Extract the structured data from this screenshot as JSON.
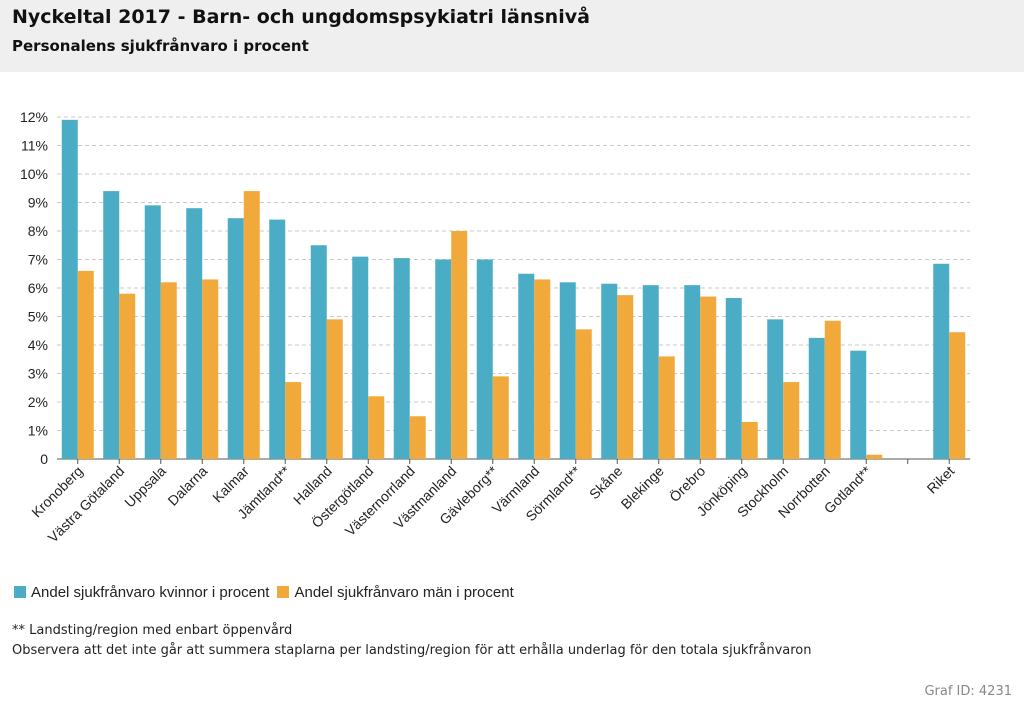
{
  "header": {
    "title": "Nyckeltal 2017 - Barn- och ungdomspsykiatri länsnivå",
    "subtitle": "Personalens sjukfrånvaro i procent"
  },
  "colors": {
    "women": "#4bacc6",
    "men": "#f2a93b",
    "grid": "#c8c8c8",
    "header_bg": "#efefef"
  },
  "chart_data": {
    "type": "bar",
    "categories": [
      "Kronoberg",
      "Västra Götaland",
      "Uppsala",
      "Dalarna",
      "Kalmar",
      "Jämtland**",
      "Halland",
      "Östergötland",
      "Västernorrland",
      "Västmanland",
      "Gävleborg**",
      "Värmland",
      "Sörmland**",
      "Skåne",
      "Blekinge",
      "Örebro",
      "Jönköping",
      "Stockholm",
      "Norrbotten",
      "Gotland**",
      "",
      "Riket"
    ],
    "series": [
      {
        "name": "Andel sjukfrånvaro kvinnor i procent",
        "values": [
          11.9,
          9.4,
          8.9,
          8.8,
          8.45,
          8.4,
          7.5,
          7.1,
          7.05,
          7.0,
          7.0,
          6.5,
          6.2,
          6.15,
          6.1,
          6.1,
          5.65,
          4.9,
          4.25,
          3.8,
          null,
          6.85
        ]
      },
      {
        "name": "Andel sjukfrånvaro män i procent",
        "values": [
          6.6,
          5.8,
          6.2,
          6.3,
          9.4,
          2.7,
          4.9,
          2.2,
          1.5,
          8.0,
          2.9,
          6.3,
          4.55,
          5.75,
          3.6,
          5.7,
          1.3,
          2.7,
          4.85,
          0.15,
          null,
          4.45
        ]
      }
    ],
    "yticks": [
      "0",
      "1%",
      "2%",
      "3%",
      "4%",
      "5%",
      "6%",
      "7%",
      "8%",
      "9%",
      "10%",
      "11%",
      "12%"
    ],
    "ylim": [
      0,
      12
    ],
    "grid": true,
    "legend_position": "bottom-left"
  },
  "footnotes": {
    "line1": "** Landsting/region med enbart öppenvård",
    "line2": "Observera att det inte går att summera staplarna per landsting/region för att erhålla underlag för den totala sjukfrånvaron"
  },
  "graf_id": "Graf ID: 4231"
}
